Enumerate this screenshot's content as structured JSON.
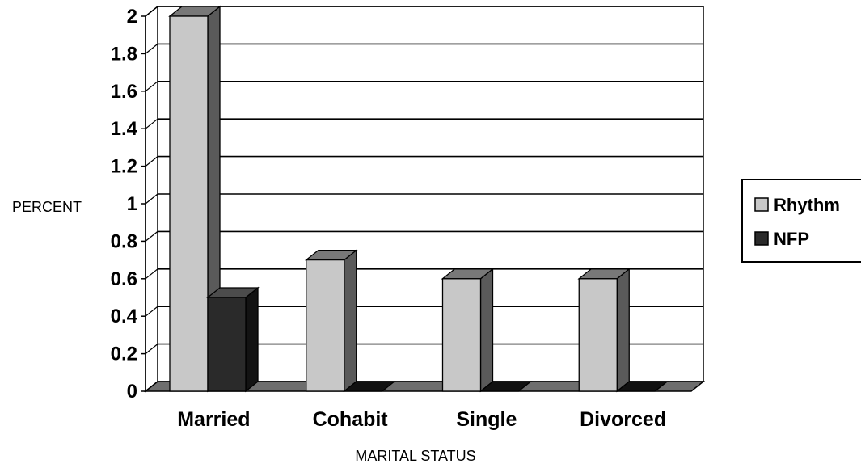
{
  "chart_data": {
    "type": "bar",
    "categories": [
      "Married",
      "Cohabit",
      "Single",
      "Divorced"
    ],
    "series": [
      {
        "name": "Rhythm",
        "values": [
          2.0,
          0.7,
          0.6,
          0.6
        ],
        "color": "#c8c8c8"
      },
      {
        "name": "NFP",
        "values": [
          0.5,
          0.0,
          0.0,
          0.0
        ],
        "color": "#2a2a2a"
      }
    ],
    "xlabel": "MARITAL STATUS",
    "ylabel": "PERCENT",
    "ylim": [
      0,
      2
    ],
    "yticks": [
      "0",
      "0.2",
      "0.4",
      "0.6",
      "0.8",
      "1",
      "1.2",
      "1.4",
      "1.6",
      "1.8",
      "2"
    ],
    "grid": true,
    "legend_position": "right",
    "style": "3d-bar"
  }
}
